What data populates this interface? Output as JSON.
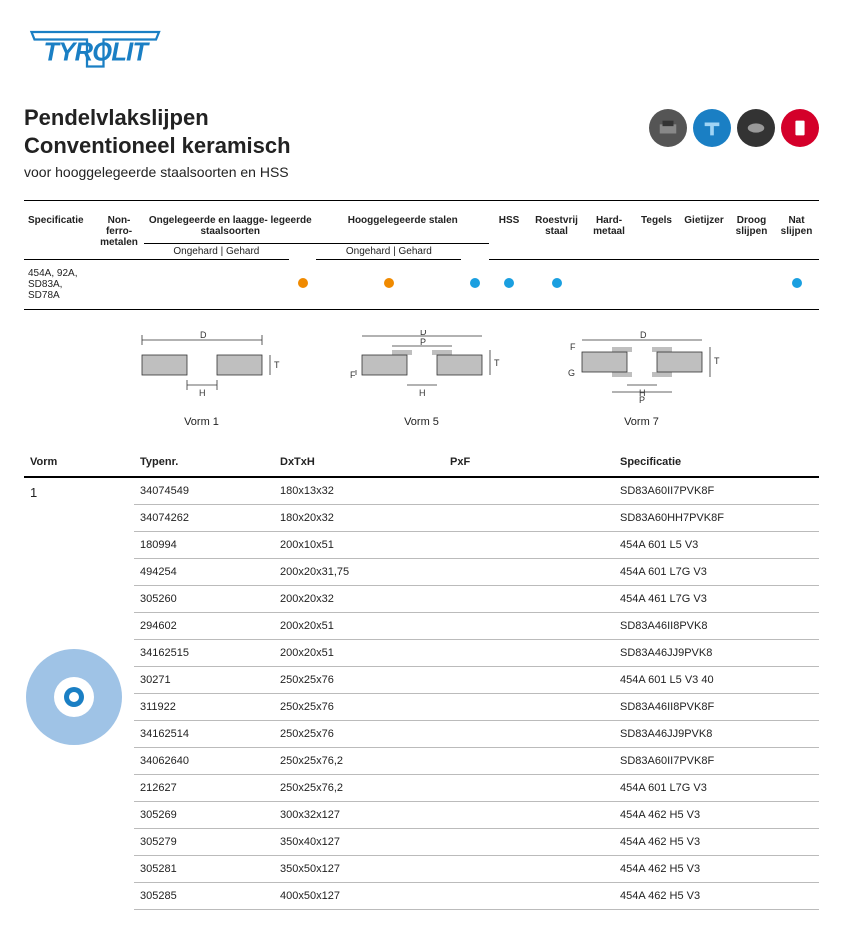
{
  "brand": "TYROLIT",
  "title1": "Pendelvlakslijpen",
  "title2": "Conventioneel keramisch",
  "subtitle": "voor hooggelegeerde staalsoorten en HSS",
  "colors": {
    "brand": "#1a7fc4",
    "dot_orange": "#f08a00",
    "dot_blue": "#1a9fe0",
    "icon_bg": [
      "#555555",
      "#1a7fc4",
      "#333333",
      "#d4002a"
    ],
    "border": "#000000",
    "row_border": "#bbbbbb",
    "wheel_outer": "#9fc3e6",
    "wheel_inner": "#ffffff",
    "wheel_hub": "#1a7fc4"
  },
  "spec_header": {
    "specificatie": "Specificatie",
    "nonferro": "Non-\nferro-\nmetalen",
    "ongelegeerd": "Ongelegeerde en laagge-\nlegeerde staalsoorten",
    "hoog": "Hooggelegeerde stalen",
    "hss": "HSS",
    "roestvrij": "Roestvrij\nstaal",
    "hardmetaal": "Hard-\nmetaal",
    "tegels": "Tegels",
    "gietijzer": "Gietijzer",
    "droog": "Droog\nslijpen",
    "nat": "Nat\nslijpen",
    "ongehard": "Ongehard",
    "gehard": "Gehard"
  },
  "spec_row_label": "454A, 92A, SD83A,\nSD78A",
  "spec_dots": {
    "ongelegeerd_gehard": "orange",
    "hoog_ongehard": "orange",
    "hoog_gehard": "blue",
    "hss": "blue",
    "roestvrij": "blue",
    "nat": "blue"
  },
  "shapes": [
    {
      "label": "Vorm 1"
    },
    {
      "label": "Vorm 5"
    },
    {
      "label": "Vorm 7"
    }
  ],
  "product_header": {
    "vorm": "Vorm",
    "typenr": "Typenr.",
    "dxtxh": "DxTxH",
    "pxf": "PxF",
    "specificatie": "Specificatie"
  },
  "vorm_value": "1",
  "products": [
    {
      "typenr": "34074549",
      "dxtxh": "180x13x32",
      "pxf": "",
      "spec": "SD83A60II7PVK8F"
    },
    {
      "typenr": "34074262",
      "dxtxh": "180x20x32",
      "pxf": "",
      "spec": "SD83A60HH7PVK8F"
    },
    {
      "typenr": "180994",
      "dxtxh": "200x10x51",
      "pxf": "",
      "spec": "454A 601 L5 V3"
    },
    {
      "typenr": "494254",
      "dxtxh": "200x20x31,75",
      "pxf": "",
      "spec": "454A 601 L7G V3"
    },
    {
      "typenr": "305260",
      "dxtxh": "200x20x32",
      "pxf": "",
      "spec": "454A 461 L7G V3"
    },
    {
      "typenr": "294602",
      "dxtxh": "200x20x51",
      "pxf": "",
      "spec": "SD83A46II8PVK8"
    },
    {
      "typenr": "34162515",
      "dxtxh": "200x20x51",
      "pxf": "",
      "spec": "SD83A46JJ9PVK8"
    },
    {
      "typenr": "30271",
      "dxtxh": "250x25x76",
      "pxf": "",
      "spec": "454A 601 L5 V3 40"
    },
    {
      "typenr": "311922",
      "dxtxh": "250x25x76",
      "pxf": "",
      "spec": "SD83A46II8PVK8F"
    },
    {
      "typenr": "34162514",
      "dxtxh": "250x25x76",
      "pxf": "",
      "spec": "SD83A46JJ9PVK8"
    },
    {
      "typenr": "34062640",
      "dxtxh": "250x25x76,2",
      "pxf": "",
      "spec": "SD83A60II7PVK8F"
    },
    {
      "typenr": "212627",
      "dxtxh": "250x25x76,2",
      "pxf": "",
      "spec": "454A 601 L7G V3"
    },
    {
      "typenr": "305269",
      "dxtxh": "300x32x127",
      "pxf": "",
      "spec": "454A 462 H5 V3"
    },
    {
      "typenr": "305279",
      "dxtxh": "350x40x127",
      "pxf": "",
      "spec": "454A 462 H5 V3"
    },
    {
      "typenr": "305281",
      "dxtxh": "350x50x127",
      "pxf": "",
      "spec": "454A 462 H5 V3"
    },
    {
      "typenr": "305285",
      "dxtxh": "400x50x127",
      "pxf": "",
      "spec": "454A 462 H5 V3"
    }
  ]
}
